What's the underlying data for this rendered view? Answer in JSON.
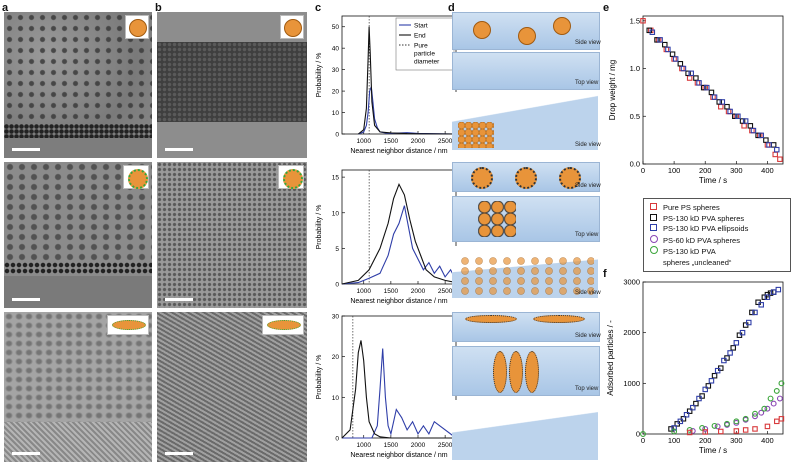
{
  "panel_labels": {
    "a": "a",
    "b": "b",
    "c": "c",
    "d": "d",
    "e": "e",
    "f": "f"
  },
  "colors": {
    "black": "#111111",
    "blue": "#2f3ea8",
    "red": "#d8393b",
    "navy": "#1f3fa8",
    "purple": "#8a45b4",
    "green": "#3aa53a",
    "particle": "#e8943a",
    "water": "#bcd3ec"
  },
  "schematic_labels": [
    "Side view",
    "Top view",
    "Side view",
    "Side view",
    "Top view",
    "Side view",
    "Side view",
    "Top view"
  ],
  "chart_data": [
    {
      "type": "line",
      "panel": "c-top",
      "xlabel": "Nearest neighbor distance / nm",
      "ylabel": "Probability / %",
      "xlim": [
        600,
        2700
      ],
      "ylim": [
        0,
        55
      ],
      "xticks": [
        1000,
        1500,
        2000,
        2500
      ],
      "yticks": [
        0,
        10,
        20,
        30,
        40,
        50
      ],
      "legend": [
        "Start",
        "End",
        "Pure particle diameter"
      ],
      "reference_x": 1100,
      "series": [
        {
          "name": "Start",
          "color": "#2f3ea8",
          "x": [
            900,
            1000,
            1050,
            1080,
            1110,
            1140,
            1170,
            1200,
            1250,
            1300,
            1400,
            1500,
            1800,
            2000,
            2700
          ],
          "y": [
            0,
            1,
            4,
            10,
            20,
            22,
            15,
            7,
            3,
            1,
            0.5,
            0.3,
            0.6,
            0.3,
            0
          ]
        },
        {
          "name": "End",
          "color": "#111111",
          "x": [
            900,
            1000,
            1050,
            1080,
            1100,
            1120,
            1150,
            1200,
            1300,
            1500,
            1800,
            2000,
            2700
          ],
          "y": [
            0,
            2,
            12,
            35,
            50,
            38,
            15,
            4,
            1,
            0.5,
            0.2,
            0.1,
            0
          ]
        }
      ]
    },
    {
      "type": "line",
      "panel": "c-mid",
      "xlabel": "Nearest neighbor distance / nm",
      "ylabel": "Probability / %",
      "xlim": [
        600,
        2700
      ],
      "ylim": [
        0,
        16
      ],
      "xticks": [
        1000,
        1500,
        2000,
        2500
      ],
      "yticks": [
        0,
        5,
        10,
        15
      ],
      "reference_x": 1100,
      "series": [
        {
          "name": "Start",
          "color": "#2f3ea8",
          "x": [
            600,
            900,
            1100,
            1300,
            1450,
            1550,
            1650,
            1750,
            1800,
            1900,
            2000,
            2100,
            2200,
            2300,
            2400,
            2500,
            2600,
            2700
          ],
          "y": [
            0,
            0.2,
            0.8,
            1.5,
            4,
            7,
            8.5,
            11,
            9,
            5,
            3.5,
            2,
            3,
            1.5,
            2.5,
            1,
            2,
            0.5
          ]
        },
        {
          "name": "End",
          "color": "#111111",
          "x": [
            600,
            900,
            1100,
            1300,
            1450,
            1550,
            1650,
            1750,
            1850,
            1950,
            2050,
            2150,
            2300,
            2500,
            2700
          ],
          "y": [
            0,
            0.5,
            2,
            5,
            8.5,
            12,
            14,
            12.5,
            9,
            6,
            4,
            2,
            1,
            0.5,
            0.2
          ]
        }
      ]
    },
    {
      "type": "line",
      "panel": "c-bot",
      "xlabel": "Nearest neighbor distance / nm",
      "ylabel": "Probability / %",
      "xlim": [
        600,
        2700
      ],
      "ylim": [
        0,
        30
      ],
      "xticks": [
        1000,
        1500,
        2000,
        2500
      ],
      "yticks": [
        0,
        10,
        20,
        30
      ],
      "reference_x": 800,
      "series": [
        {
          "name": "Start",
          "color": "#2f3ea8",
          "x": [
            600,
            1000,
            1150,
            1250,
            1300,
            1350,
            1400,
            1450,
            1500,
            1600,
            1700,
            1800,
            1900,
            2000,
            2100,
            2200,
            2300,
            2700
          ],
          "y": [
            0,
            0,
            0,
            3,
            12,
            22,
            10,
            3,
            1,
            7,
            5,
            2,
            4,
            1,
            3,
            1,
            4,
            0
          ]
        },
        {
          "name": "End",
          "color": "#111111",
          "x": [
            600,
            750,
            850,
            900,
            950,
            1000,
            1050,
            1100,
            1200,
            1300,
            1500,
            2700
          ],
          "y": [
            0,
            2,
            12,
            21,
            24,
            19,
            10,
            4,
            1,
            0.3,
            0,
            0
          ]
        }
      ]
    },
    {
      "type": "scatter",
      "panel": "e",
      "xlabel": "Time / s",
      "ylabel": "Drop weight / mg",
      "xlim": [
        0,
        450
      ],
      "ylim": [
        0,
        1.55
      ],
      "xticks": [
        0,
        100,
        200,
        300,
        400
      ],
      "yticks": [
        0.0,
        0.5,
        1.0,
        1.5
      ],
      "series": [
        {
          "name": "Pure PS spheres",
          "color": "#d8393b",
          "x": [
            0,
            25,
            50,
            75,
            100,
            125,
            150,
            175,
            200,
            225,
            250,
            275,
            300,
            325,
            350,
            375,
            400,
            425,
            440
          ],
          "y": [
            1.5,
            1.4,
            1.3,
            1.2,
            1.1,
            1.0,
            0.9,
            0.85,
            0.8,
            0.7,
            0.6,
            0.55,
            0.5,
            0.4,
            0.35,
            0.3,
            0.2,
            0.1,
            0.05
          ]
        },
        {
          "name": "PS-130 kD PVA spheres",
          "color": "#111111",
          "x": [
            20,
            45,
            70,
            95,
            120,
            145,
            170,
            195,
            220,
            245,
            270,
            295,
            320,
            345,
            370,
            395,
            420
          ],
          "y": [
            1.4,
            1.3,
            1.25,
            1.15,
            1.05,
            0.95,
            0.9,
            0.8,
            0.75,
            0.65,
            0.6,
            0.5,
            0.45,
            0.4,
            0.3,
            0.25,
            0.2
          ]
        },
        {
          "name": "PS-130 kD PVA ellipsoids",
          "color": "#2f3ea8",
          "x": [
            30,
            55,
            80,
            105,
            130,
            155,
            180,
            205,
            230,
            255,
            280,
            305,
            330,
            355,
            380,
            405,
            430
          ],
          "y": [
            1.38,
            1.3,
            1.2,
            1.1,
            1.0,
            0.95,
            0.85,
            0.8,
            0.7,
            0.65,
            0.55,
            0.5,
            0.45,
            0.35,
            0.3,
            0.2,
            0.15
          ]
        }
      ]
    },
    {
      "type": "scatter",
      "panel": "f",
      "xlabel": "Time / s",
      "ylabel": "Adsorbed particles / -",
      "xlim": [
        0,
        450
      ],
      "ylim": [
        0,
        3000
      ],
      "xticks": [
        0,
        100,
        200,
        300,
        400
      ],
      "yticks": [
        0,
        1000,
        2000,
        3000
      ],
      "series": [
        {
          "name": "PS-130 kD PVA spheres",
          "color": "#111111",
          "x": [
            90,
            110,
            130,
            150,
            170,
            190,
            210,
            230,
            250,
            270,
            290,
            310,
            330,
            350,
            370,
            390,
            400,
            410,
            420
          ],
          "y": [
            100,
            200,
            300,
            450,
            600,
            750,
            950,
            1150,
            1300,
            1500,
            1700,
            1950,
            2150,
            2400,
            2600,
            2700,
            2750,
            2780,
            2800
          ]
        },
        {
          "name": "PS-130 kD PVA ellipsoids",
          "color": "#2f3ea8",
          "x": [
            100,
            120,
            140,
            160,
            180,
            200,
            220,
            240,
            260,
            280,
            300,
            320,
            340,
            360,
            380,
            400,
            420,
            435
          ],
          "y": [
            120,
            250,
            380,
            520,
            700,
            880,
            1050,
            1250,
            1450,
            1600,
            1800,
            2000,
            2200,
            2400,
            2550,
            2700,
            2800,
            2850
          ]
        },
        {
          "name": "PS-60 kD PVA spheres",
          "color": "#8a45b4",
          "x": [
            160,
            200,
            240,
            270,
            300,
            330,
            360,
            380,
            400,
            420,
            440
          ],
          "y": [
            60,
            100,
            150,
            180,
            220,
            280,
            350,
            420,
            500,
            600,
            700
          ]
        },
        {
          "name": "PS-130 kD PVA spheres „uncleaned“",
          "color": "#3aa53a",
          "x": [
            0,
            100,
            150,
            190,
            230,
            270,
            300,
            330,
            360,
            390,
            410,
            430,
            445
          ],
          "y": [
            0,
            50,
            80,
            120,
            160,
            200,
            250,
            300,
            400,
            500,
            700,
            850,
            1000
          ]
        },
        {
          "name": "Pure PS spheres",
          "color": "#d8393b",
          "x": [
            150,
            200,
            250,
            300,
            330,
            360,
            400,
            430,
            445
          ],
          "y": [
            30,
            40,
            50,
            60,
            80,
            100,
            150,
            250,
            300
          ]
        }
      ]
    }
  ],
  "legend_e": [
    "Pure PS spheres",
    "PS-130 kD PVA spheres",
    "PS-130 kD PVA ellipsoids",
    "PS-60 kD PVA spheres",
    "PS-130 kD PVA",
    "spheres „uncleaned“"
  ]
}
